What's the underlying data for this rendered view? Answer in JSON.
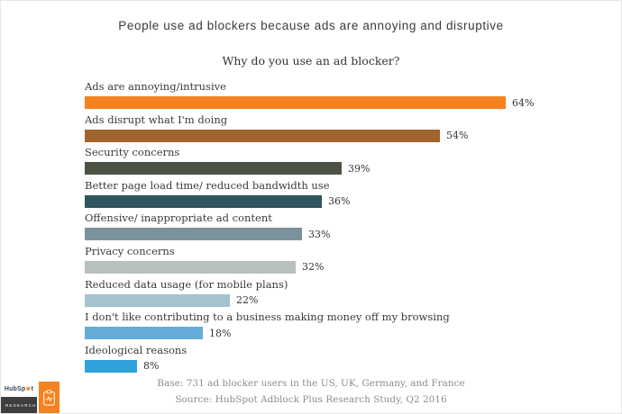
{
  "title": "People use ad blockers because ads are annoying and disruptive",
  "chart_data": {
    "type": "bar",
    "orientation": "horizontal",
    "title": "Why do you use an ad blocker?",
    "categories": [
      "Ads are annoying/intrusive",
      "Ads disrupt what I'm doing",
      "Security concerns",
      "Better page load time/ reduced bandwidth use",
      "Offensive/ inappropriate ad content",
      "Privacy concerns",
      "Reduced data usage (for mobile plans)",
      "I don't like contributing to a business making money off my browsing",
      "Ideological reasons"
    ],
    "values": [
      64,
      54,
      39,
      36,
      33,
      32,
      22,
      18,
      8
    ],
    "value_suffix": "%",
    "bar_colors": [
      "#f5811f",
      "#a2642f",
      "#4c5244",
      "#2e545c",
      "#7a929b",
      "#b7bfbf",
      "#a5c2ce",
      "#66acd8",
      "#2fa2db"
    ],
    "xlim": [
      0,
      100
    ],
    "grid": false,
    "legend": false,
    "value_labels_position": "right-of-bar"
  },
  "footer": {
    "base": "Base: 731 ad blocker users in the US, UK, Germany, and France",
    "source": "Source: HubSpot Adblock Plus Research Study, Q2 2016"
  },
  "logo": {
    "brand_prefix": "HubSp",
    "brand_sprocket": "✱",
    "brand_suffix": "t",
    "division": "RESEARCH"
  },
  "icons": {
    "logo_tile": "clipboard-chart-icon",
    "brand_mark": "hubspot-sprocket-icon"
  },
  "colors": {
    "accent_orange": "#f5811f",
    "logo_dark": "#3e3e3e",
    "title_text": "#3b3b3b",
    "footer_text": "#8d8d8d"
  }
}
